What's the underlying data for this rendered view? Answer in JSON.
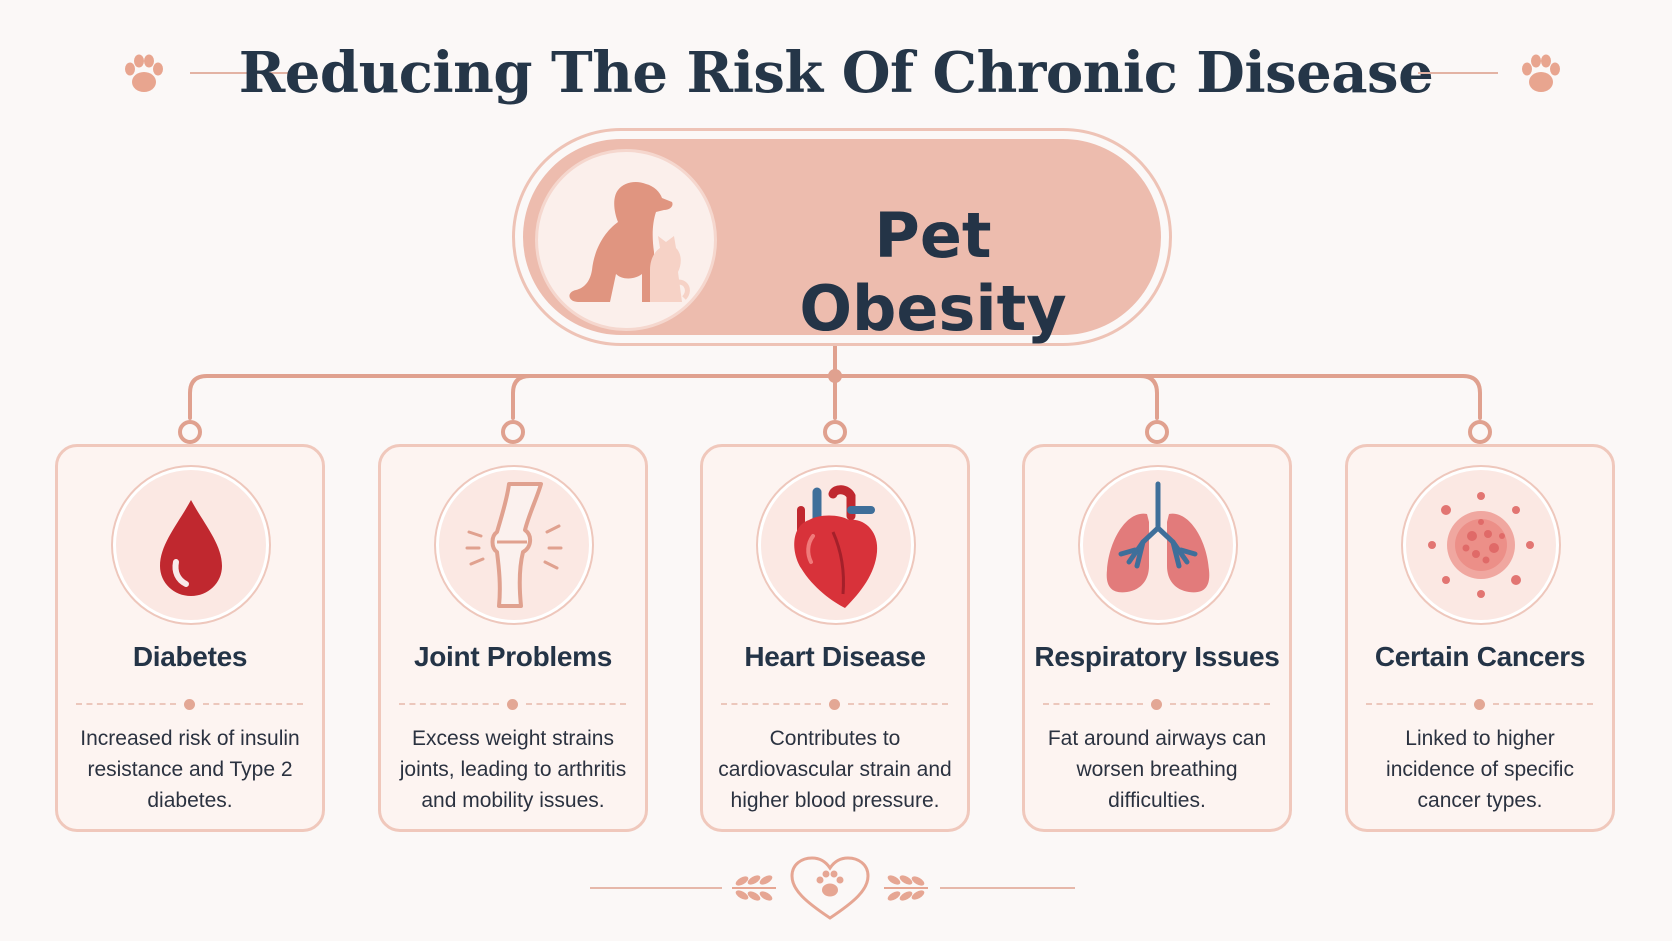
{
  "title": "Reducing The Risk Of Chronic Disease",
  "central": {
    "label": "Pet Obesity",
    "icon": "dog-and-cat-icon"
  },
  "cards": [
    {
      "title": "Diabetes",
      "description": "Increased risk of insulin resistance and Type 2 diabetes.",
      "icon": "blood-drop-icon"
    },
    {
      "title": "Joint Problems",
      "description": "Excess weight strains joints, leading to arthritis and mobility issues.",
      "icon": "knee-joint-icon"
    },
    {
      "title": "Heart Disease",
      "description": "Contributes to cardiovascular strain and higher blood pressure.",
      "icon": "heart-organ-icon"
    },
    {
      "title": "Respiratory Issues",
      "description": "Fat around airways can worsen breathing difficulties.",
      "icon": "lungs-icon"
    },
    {
      "title": "Certain Cancers",
      "description": "Linked to higher incidence of specific cancer types.",
      "icon": "cancer-cell-icon"
    }
  ],
  "colors": {
    "accent": "#e3a795",
    "hub_fill": "#edbcae",
    "card_border": "#f0c8bc",
    "text_dark": "#243447",
    "drop_red": "#c0282f"
  }
}
